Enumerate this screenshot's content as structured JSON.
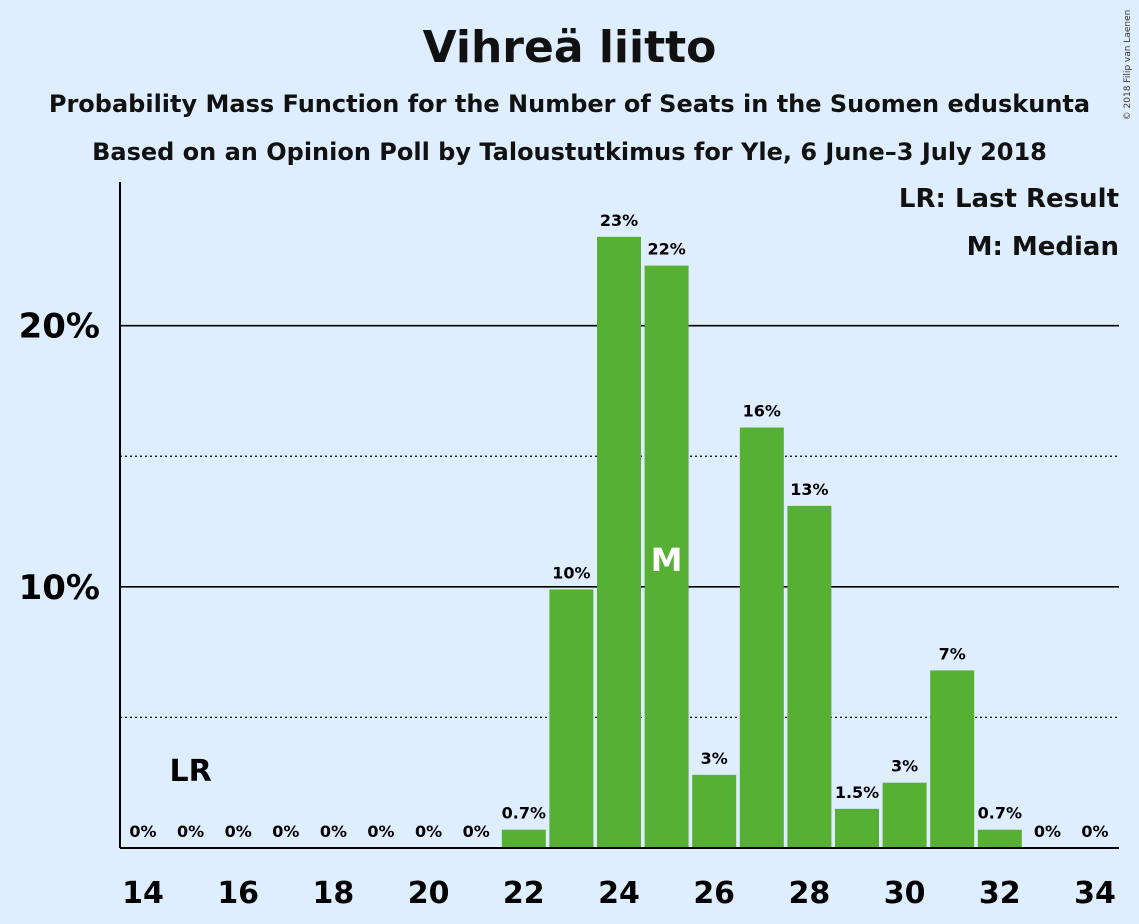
{
  "chart_data": {
    "type": "bar",
    "title": "Vihreä liitto",
    "subtitle_1": "Probability Mass Function for the Number of Seats in the Suomen eduskunta",
    "subtitle_2": "Based on an Opinion Poll by Taloustutkimus for Yle, 6 June–3 July 2018",
    "copyright": "© 2018 Filip van Laenen",
    "legend": {
      "last_result": "LR: Last Result",
      "median": "M: Median",
      "placement": "top-right"
    },
    "x": [
      14,
      15,
      16,
      17,
      18,
      19,
      20,
      21,
      22,
      23,
      24,
      25,
      26,
      27,
      28,
      29,
      30,
      31,
      32,
      33,
      34
    ],
    "values": [
      0,
      0,
      0,
      0,
      0,
      0,
      0,
      0,
      0.7,
      9.9,
      23.4,
      22.3,
      2.8,
      16.1,
      13.1,
      1.5,
      2.5,
      6.8,
      0.7,
      0,
      0
    ],
    "value_labels": [
      "0%",
      "0%",
      "0%",
      "0%",
      "0%",
      "0%",
      "0%",
      "0%",
      "0.7%",
      "10%",
      "23%",
      "22%",
      "3%",
      "16%",
      "13%",
      "1.5%",
      "3%",
      "7%",
      "0.7%",
      "0%",
      "0%"
    ],
    "xticks": [
      "14",
      "16",
      "18",
      "20",
      "22",
      "24",
      "26",
      "28",
      "30",
      "32",
      "34"
    ],
    "yticks": [
      {
        "value": 10,
        "label": "10%"
      },
      {
        "value": 20,
        "label": "20%"
      }
    ],
    "dotted_gridlines": [
      5,
      15
    ],
    "ylim": [
      0,
      25.5
    ],
    "last_result": {
      "x": 15,
      "label": "LR"
    },
    "median": {
      "x": 25,
      "label": "M"
    },
    "colors": {
      "bar": "#55b034",
      "background": "#dfeeff",
      "axis": "#000000"
    }
  }
}
